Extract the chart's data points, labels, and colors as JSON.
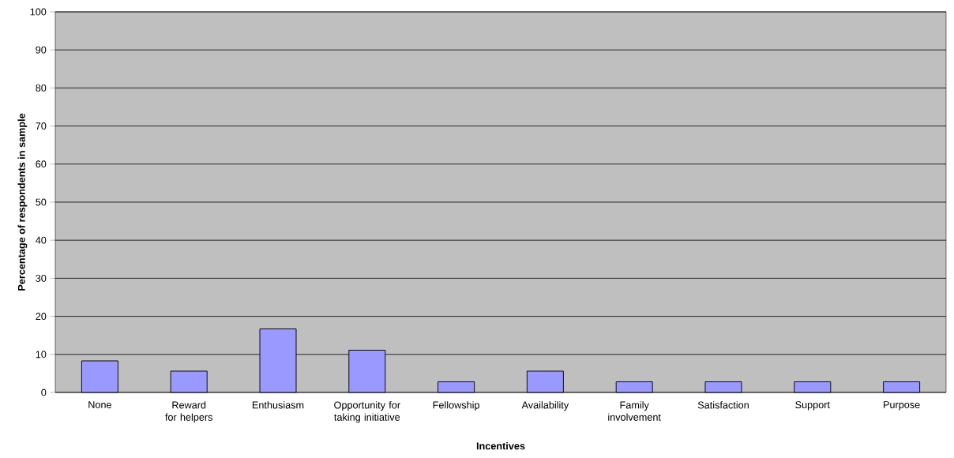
{
  "chart_data": {
    "type": "bar",
    "xlabel": "Incentives",
    "ylabel": "Percentage of respondents in sample",
    "categories": [
      "None",
      "Reward for helpers",
      "Enthusiasm",
      "Opportunity for taking initiative",
      "Fellowship",
      "Availability",
      "Family involvement",
      "Satisfaction",
      "Support",
      "Purpose"
    ],
    "values": [
      8.3,
      5.6,
      16.7,
      11.1,
      2.8,
      5.6,
      2.8,
      2.8,
      2.8,
      2.8
    ],
    "color": "#9999ff",
    "ylim": [
      0,
      100
    ],
    "yticks": [
      0,
      10,
      20,
      30,
      40,
      50,
      60,
      70,
      80,
      90,
      100
    ],
    "grid": "y"
  }
}
